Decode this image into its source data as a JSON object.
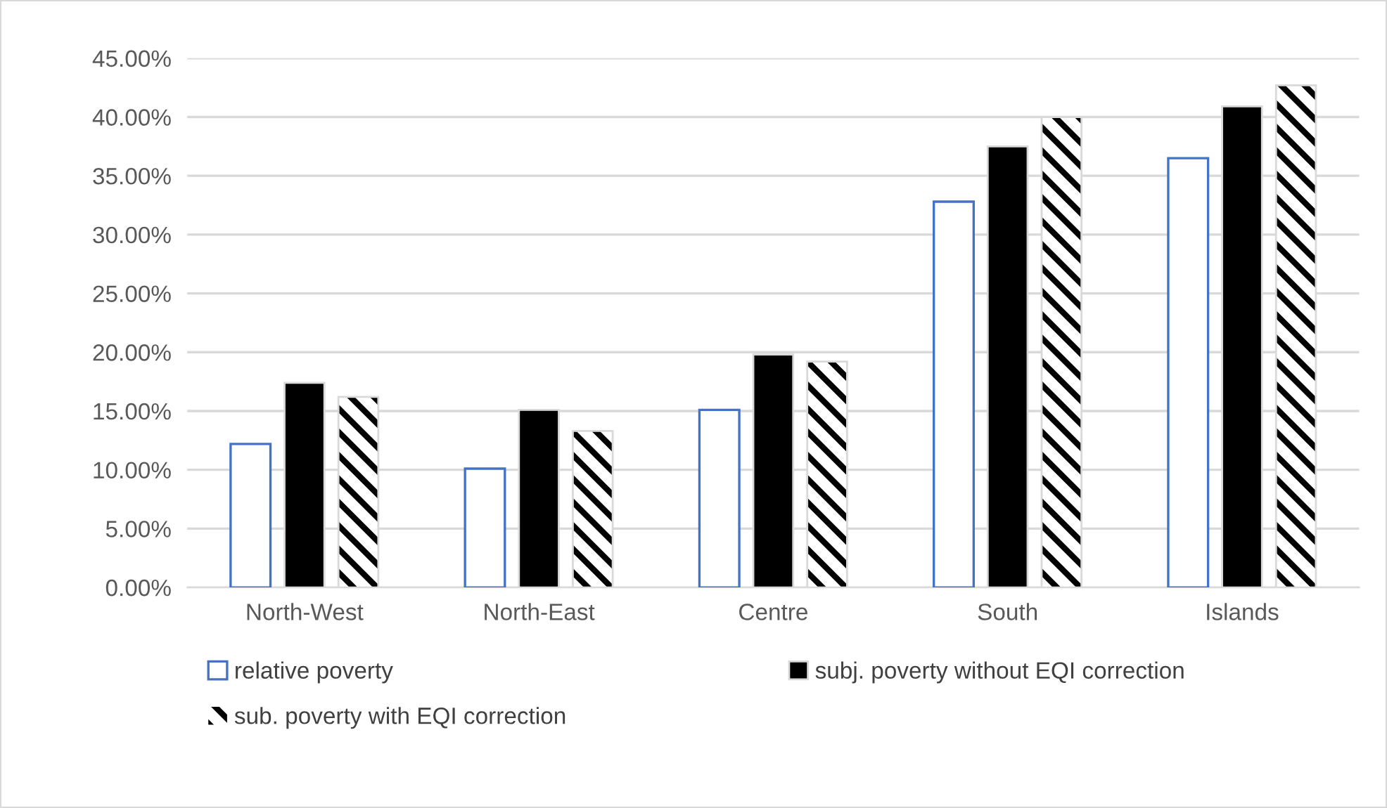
{
  "chart_data": {
    "type": "bar",
    "categories": [
      "North-West",
      "North-East",
      "Centre",
      "South",
      "Islands"
    ],
    "series": [
      {
        "name": "relative poverty",
        "color": "#4472c4",
        "values": [
          12.2,
          10.1,
          15.1,
          32.8,
          36.5
        ]
      },
      {
        "name": "subj. poverty without EQI correction",
        "color": "#000000",
        "values": [
          17.4,
          15.1,
          19.8,
          37.5,
          40.9
        ]
      },
      {
        "name": "sub. poverty with EQI correction",
        "color": "#000000",
        "values": [
          16.2,
          13.3,
          19.2,
          40.0,
          42.7
        ]
      }
    ],
    "ylim": [
      0,
      45
    ],
    "yticks": [
      {
        "value": 0,
        "label": "0.00%"
      },
      {
        "value": 5,
        "label": "5.00%"
      },
      {
        "value": 10,
        "label": "10.00%"
      },
      {
        "value": 15,
        "label": "15.00%"
      },
      {
        "value": 20,
        "label": "20.00%"
      },
      {
        "value": 25,
        "label": "25.00%"
      },
      {
        "value": 30,
        "label": "30.00%"
      },
      {
        "value": 35,
        "label": "35.00%"
      },
      {
        "value": 40,
        "label": "40.00%"
      },
      {
        "value": 45,
        "label": "45.00%"
      }
    ],
    "grid": "y",
    "legend": "bottom"
  }
}
